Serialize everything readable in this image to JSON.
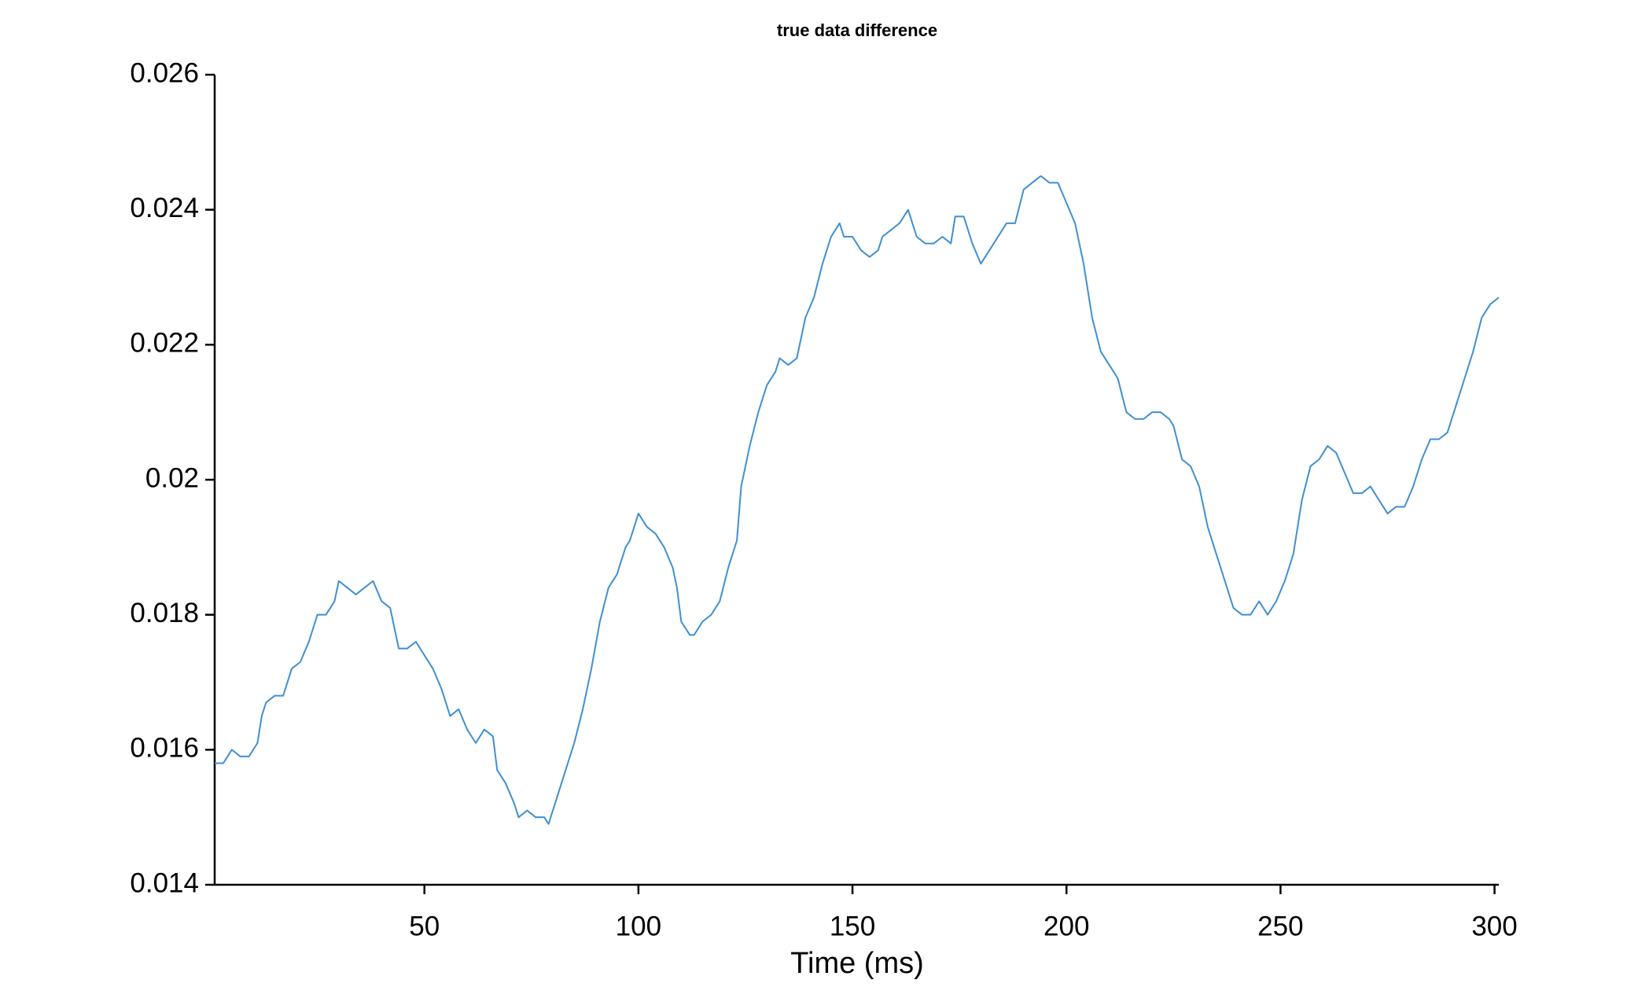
{
  "chart_data": {
    "type": "line",
    "title": "true data difference",
    "xlabel": "Time (ms)",
    "color": "#3f8fd2",
    "x": [
      1,
      3,
      5,
      7,
      9,
      11,
      12,
      13,
      15,
      17,
      19,
      21,
      23,
      25,
      27,
      29,
      30,
      32,
      34,
      36,
      38,
      40,
      42,
      44,
      46,
      48,
      50,
      52,
      54,
      56,
      58,
      60,
      62,
      64,
      66,
      67,
      69,
      71,
      72,
      74,
      76,
      78,
      79,
      81,
      83,
      85,
      87,
      89,
      91,
      93,
      95,
      97,
      98,
      100,
      102,
      104,
      106,
      108,
      109,
      110,
      112,
      113,
      115,
      117,
      119,
      121,
      123,
      124,
      126,
      128,
      130,
      132,
      133,
      135,
      137,
      139,
      141,
      143,
      145,
      147,
      148,
      150,
      152,
      154,
      156,
      157,
      159,
      161,
      163,
      165,
      167,
      169,
      171,
      173,
      174,
      176,
      178,
      180,
      182,
      184,
      186,
      188,
      190,
      192,
      194,
      196,
      198,
      200,
      202,
      204,
      206,
      208,
      210,
      212,
      214,
      216,
      218,
      220,
      222,
      224,
      225,
      227,
      229,
      231,
      233,
      235,
      237,
      239,
      241,
      243,
      245,
      247,
      249,
      251,
      253,
      255,
      257,
      259,
      261,
      263,
      265,
      267,
      269,
      271,
      273,
      275,
      277,
      279,
      281,
      283,
      285,
      287,
      289,
      291,
      293,
      295,
      297,
      299,
      301
    ],
    "values": [
      0.0158,
      0.0158,
      0.016,
      0.0159,
      0.0159,
      0.0161,
      0.0165,
      0.0167,
      0.0168,
      0.0168,
      0.0172,
      0.0173,
      0.0176,
      0.018,
      0.018,
      0.0182,
      0.0185,
      0.0184,
      0.0183,
      0.0184,
      0.0185,
      0.0182,
      0.0181,
      0.0175,
      0.0175,
      0.0176,
      0.0174,
      0.0172,
      0.0169,
      0.0165,
      0.0166,
      0.0163,
      0.0161,
      0.0163,
      0.0162,
      0.0157,
      0.0155,
      0.0152,
      0.015,
      0.0151,
      0.015,
      0.015,
      0.0149,
      0.0153,
      0.0157,
      0.0161,
      0.0166,
      0.0172,
      0.0179,
      0.0184,
      0.0186,
      0.019,
      0.0191,
      0.0195,
      0.0193,
      0.0192,
      0.019,
      0.0187,
      0.0184,
      0.0179,
      0.0177,
      0.0177,
      0.0179,
      0.018,
      0.0182,
      0.0187,
      0.0191,
      0.0199,
      0.0205,
      0.021,
      0.0214,
      0.0216,
      0.0218,
      0.0217,
      0.0218,
      0.0224,
      0.0227,
      0.0232,
      0.0236,
      0.0238,
      0.0236,
      0.0236,
      0.0234,
      0.0233,
      0.0234,
      0.0236,
      0.0237,
      0.0238,
      0.024,
      0.0236,
      0.0235,
      0.0235,
      0.0236,
      0.0235,
      0.0239,
      0.0239,
      0.0235,
      0.0232,
      0.0234,
      0.0236,
      0.0238,
      0.0238,
      0.0243,
      0.0244,
      0.0245,
      0.0244,
      0.0244,
      0.0241,
      0.0238,
      0.0232,
      0.0224,
      0.0219,
      0.0217,
      0.0215,
      0.021,
      0.0209,
      0.0209,
      0.021,
      0.021,
      0.0209,
      0.0208,
      0.0203,
      0.0202,
      0.0199,
      0.0193,
      0.0189,
      0.0185,
      0.0181,
      0.018,
      0.018,
      0.0182,
      0.018,
      0.0182,
      0.0185,
      0.0189,
      0.0197,
      0.0202,
      0.0203,
      0.0205,
      0.0204,
      0.0201,
      0.0198,
      0.0198,
      0.0199,
      0.0197,
      0.0195,
      0.0196,
      0.0196,
      0.0199,
      0.0203,
      0.0206,
      0.0206,
      0.0207,
      0.0211,
      0.0215,
      0.0219,
      0.0224,
      0.0226,
      0.0227
    ],
    "xlim": [
      1,
      301
    ],
    "xticks": [
      50,
      100,
      150,
      200,
      250,
      300
    ],
    "ylim": [
      0.014,
      0.026
    ],
    "yticks": [
      0.014,
      0.016,
      0.018,
      0.02,
      0.022,
      0.024,
      0.026
    ]
  }
}
